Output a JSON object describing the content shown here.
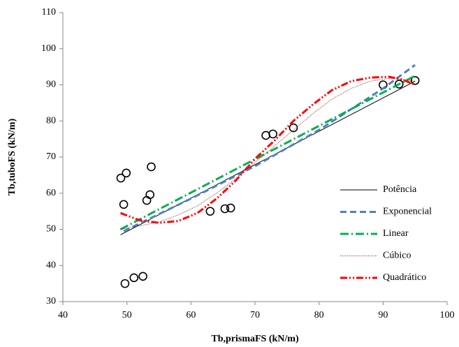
{
  "chart_data": {
    "type": "scatter",
    "xlabel": "Tb,prismaFS (kN/m)",
    "ylabel": "Tb,tuboFS (kN/m)",
    "xlim": [
      40,
      100
    ],
    "xticks": [
      40,
      50,
      60,
      70,
      80,
      90,
      100
    ],
    "ylim": [
      30,
      110
    ],
    "yticks": [
      30,
      40,
      50,
      60,
      70,
      80,
      90,
      100,
      110
    ],
    "grid": false,
    "legend": "right",
    "series": [
      {
        "mode": "markers",
        "color": "#000000",
        "x": [
          49.05,
          49.9,
          49.5,
          53.8,
          53.6,
          53.1,
          49.7,
          51.1,
          52.5,
          63,
          65.3,
          66.2,
          71.7,
          72.8,
          76,
          90,
          92.5,
          95
        ],
        "values": [
          64.2,
          65.6,
          56.9,
          67.3,
          59.6,
          58,
          35,
          36.6,
          37,
          55,
          55.7,
          55.9,
          76,
          76.4,
          78.1,
          90,
          90.2,
          91.2
        ]
      },
      {
        "name": "Potência",
        "mode": "line",
        "color": "#000000",
        "dash": "none",
        "x": [
          49,
          95
        ],
        "values": [
          48.5,
          91
        ]
      },
      {
        "name": "Exponencial",
        "mode": "line",
        "color": "#4f81bd",
        "dash": "9 5",
        "x": [
          49.5,
          60,
          70,
          80,
          90,
          95
        ],
        "values": [
          49.5,
          58.5,
          67.5,
          77.5,
          89,
          95.5
        ]
      },
      {
        "name": "Linear",
        "mode": "line",
        "color": "#00b050",
        "dash": "12 4 2 4",
        "x": [
          49,
          95
        ],
        "values": [
          50,
          92.5
        ]
      },
      {
        "name": "Cúbico",
        "mode": "line",
        "color": "#8b1a1a",
        "dash": "1 1.5",
        "x": [
          49,
          52,
          55,
          58,
          61,
          64,
          67,
          70,
          73,
          76,
          79,
          82,
          85,
          88,
          91,
          93,
          95
        ],
        "values": [
          50,
          51,
          52,
          54,
          56.5,
          60,
          64,
          68.5,
          73,
          77.5,
          82,
          86,
          89,
          91,
          91.8,
          91.5,
          91
        ]
      },
      {
        "name": "Quadrático",
        "mode": "line",
        "color": "#ff0000",
        "dash": "10 3 2 3 2 3",
        "x": [
          49,
          52,
          55,
          58,
          61,
          64,
          67,
          70,
          73,
          76,
          79,
          82,
          85,
          88,
          91,
          93,
          95
        ],
        "values": [
          54.5,
          52.5,
          51.8,
          52.3,
          54.5,
          58.5,
          63.5,
          69.5,
          74.5,
          80,
          84.5,
          88.5,
          91,
          92,
          92.2,
          91.5,
          90
        ]
      }
    ]
  }
}
